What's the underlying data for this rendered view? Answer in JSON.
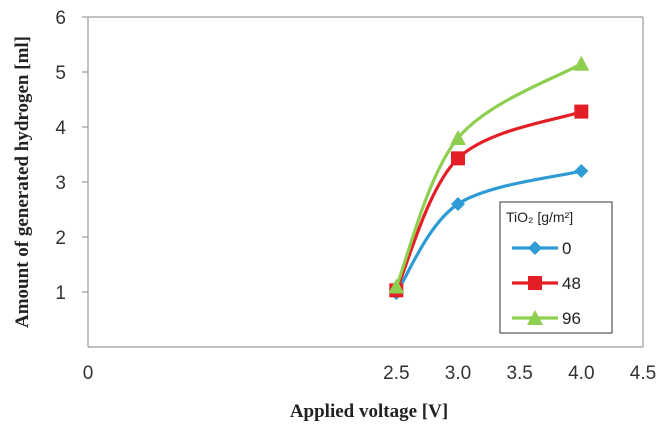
{
  "chart_data": {
    "type": "line",
    "xlabel": "Applied voltage [V]",
    "ylabel": "Amount of generated hydrogen [ml]",
    "xlim": [
      0,
      4.5
    ],
    "ylim": [
      0,
      6
    ],
    "x_tick_labels": [
      "0",
      "2.5",
      "3.0",
      "3.5",
      "4.0",
      "4.5"
    ],
    "x_tick_values": [
      0,
      2.5,
      3.0,
      3.5,
      4.0,
      4.5
    ],
    "y_tick_labels": [
      "1",
      "2",
      "3",
      "4",
      "5",
      "6"
    ],
    "y_tick_values": [
      1,
      2,
      3,
      4,
      5,
      6
    ],
    "grid": false,
    "legend": {
      "title": "TiO₂ [g/m²]",
      "placement": "right"
    },
    "x": [
      2.5,
      3.0,
      4.0
    ],
    "series": [
      {
        "name": "0",
        "values": [
          0.98,
          2.6,
          3.2
        ],
        "color": "#2e9bd6",
        "marker": "diamond"
      },
      {
        "name": "48",
        "values": [
          1.03,
          3.43,
          4.28
        ],
        "color": "#e41e26",
        "marker": "square"
      },
      {
        "name": "96",
        "values": [
          1.1,
          3.8,
          5.15
        ],
        "color": "#8fcf4f",
        "marker": "triangle"
      }
    ]
  }
}
